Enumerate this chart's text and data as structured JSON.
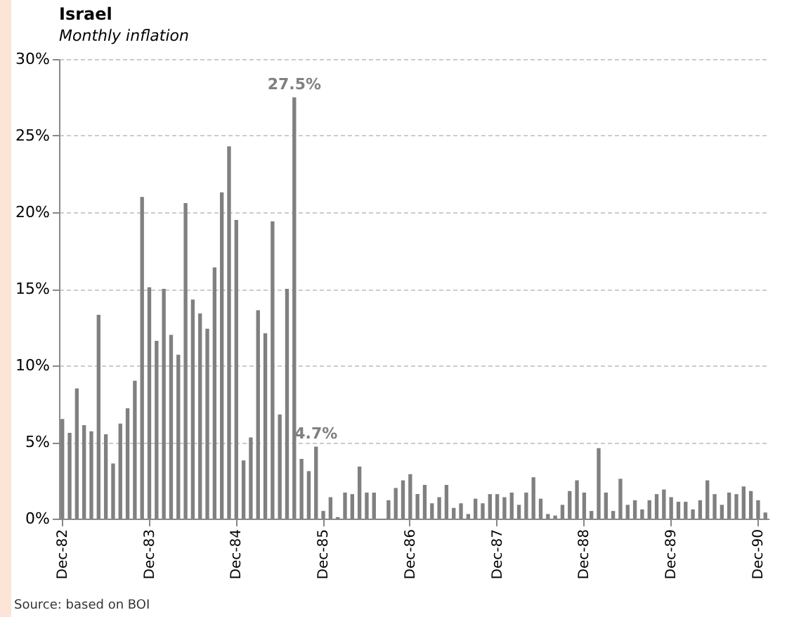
{
  "chart_data": {
    "type": "bar",
    "title": "Israel",
    "subtitle": "Monthly inflation",
    "annotations": [
      "Source: based on BOI"
    ],
    "categories": [
      "Dec-82",
      null,
      null,
      null,
      null,
      null,
      null,
      null,
      null,
      null,
      null,
      null,
      "Dec-83",
      null,
      null,
      null,
      null,
      null,
      null,
      null,
      null,
      null,
      null,
      null,
      "Dec-84",
      null,
      null,
      null,
      null,
      null,
      null,
      null,
      null,
      null,
      null,
      null,
      "Dec-85",
      null,
      null,
      null,
      null,
      null,
      null,
      null,
      null,
      null,
      null,
      null,
      "Dec-86",
      null,
      null,
      null,
      null,
      null,
      null,
      null,
      null,
      null,
      null,
      null,
      "Dec-87",
      null,
      null,
      null,
      null,
      null,
      null,
      null,
      null,
      null,
      null,
      null,
      "Dec-88",
      null,
      null,
      null,
      null,
      null,
      null,
      null,
      null,
      null,
      null,
      null,
      "Dec-89",
      null,
      null,
      null,
      null,
      null,
      null,
      null,
      null,
      null,
      null,
      null,
      "Dec-90",
      null
    ],
    "values": [
      6.5,
      5.6,
      8.5,
      6.1,
      5.7,
      13.3,
      5.5,
      3.6,
      6.2,
      7.2,
      9.0,
      21.0,
      15.1,
      11.6,
      15.0,
      12.0,
      10.7,
      20.6,
      14.3,
      13.4,
      12.4,
      16.4,
      21.3,
      24.3,
      19.5,
      3.8,
      5.3,
      13.6,
      12.1,
      19.4,
      6.8,
      15.0,
      27.5,
      3.9,
      3.1,
      4.7,
      0.5,
      1.4,
      0.1,
      1.7,
      1.6,
      3.4,
      1.7,
      1.7,
      0,
      1.2,
      2.0,
      2.5,
      2.9,
      1.6,
      2.2,
      1.0,
      1.4,
      2.2,
      0.7,
      1.0,
      0.3,
      1.3,
      1.0,
      1.6,
      1.6,
      1.4,
      1.7,
      0.9,
      1.7,
      2.7,
      1.3,
      0.3,
      0.2,
      0.9,
      1.8,
      2.5,
      1.7,
      0.5,
      4.6,
      1.7,
      0.5,
      2.6,
      0.9,
      1.2,
      0.6,
      1.2,
      1.6,
      1.9,
      1.4,
      1.1,
      1.1,
      0.6,
      1.2,
      2.5,
      1.6,
      0.9,
      1.7,
      1.6,
      2.1,
      1.8,
      1.2,
      0.4
    ],
    "value_labels": [
      null,
      null,
      null,
      null,
      null,
      null,
      null,
      null,
      null,
      null,
      null,
      null,
      null,
      null,
      null,
      null,
      null,
      null,
      null,
      null,
      null,
      null,
      null,
      null,
      null,
      null,
      null,
      null,
      null,
      null,
      null,
      null,
      "27.5%",
      null,
      null,
      "4.7%",
      null,
      null,
      null,
      null,
      null,
      null,
      null,
      null,
      null,
      null,
      null,
      null,
      null,
      null,
      null,
      null,
      null,
      null,
      null,
      null,
      null,
      null,
      null,
      null,
      null,
      null,
      null,
      null,
      null,
      null,
      null,
      null,
      null,
      null,
      null,
      null,
      null,
      null,
      null,
      null,
      null,
      null,
      null,
      null,
      null,
      null,
      null,
      null,
      null,
      null,
      null,
      null,
      null,
      null,
      null,
      null,
      null,
      null,
      null,
      null,
      null,
      null
    ],
    "color": "#808080",
    "ylim": [
      0,
      30
    ],
    "yticks": [
      {
        "value": 0,
        "label": "0%"
      },
      {
        "value": 5,
        "label": "5%"
      },
      {
        "value": 10,
        "label": "10%"
      },
      {
        "value": 15,
        "label": "15%"
      },
      {
        "value": 20,
        "label": "20%"
      },
      {
        "value": 25,
        "label": "25%"
      },
      {
        "value": 30,
        "label": "30%"
      }
    ],
    "grid": "y"
  }
}
